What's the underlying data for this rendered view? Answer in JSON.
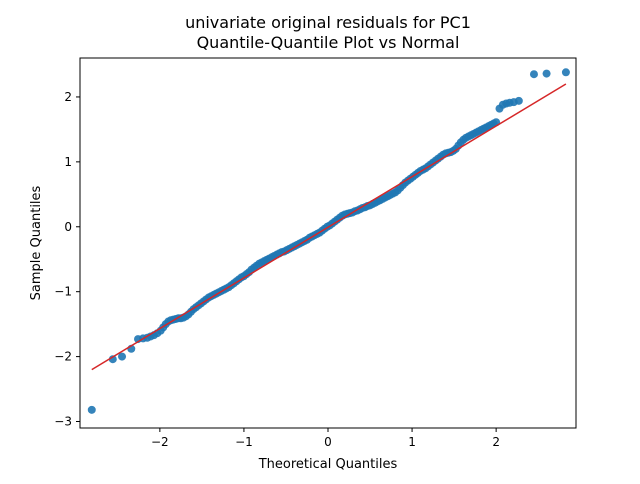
{
  "chart_data": {
    "type": "scatter",
    "title": "univariate original residuals for PC1",
    "subtitle": "Quantile-Quantile Plot vs Normal",
    "xlabel": "Theoretical Quantiles",
    "ylabel": "Sample Quantiles",
    "xlim": [
      -2.95,
      2.95
    ],
    "ylim": [
      -3.1,
      2.6
    ],
    "x_ticks": [
      -2,
      -1,
      0,
      1,
      2
    ],
    "x_tick_labels": [
      "−2",
      "−1",
      "0",
      "1",
      "2"
    ],
    "y_ticks": [
      -3,
      -2,
      -1,
      0,
      1,
      2
    ],
    "y_tick_labels": [
      "−3",
      "−2",
      "−1",
      "0",
      "1",
      "2"
    ],
    "grid": false,
    "series": [
      {
        "kind": "points",
        "color": "#1f77b4",
        "points": [
          [
            -2.81,
            -2.82
          ],
          [
            -2.56,
            -2.04
          ],
          [
            -2.45,
            -2.0
          ],
          [
            -2.34,
            -1.88
          ],
          [
            -2.26,
            -1.73
          ],
          [
            -2.2,
            -1.72
          ],
          [
            -2.15,
            -1.71
          ],
          [
            -2.11,
            -1.69
          ],
          [
            -2.07,
            -1.67
          ],
          [
            -2.03,
            -1.64
          ],
          [
            -1.99,
            -1.6
          ],
          [
            -1.96,
            -1.55
          ],
          [
            -1.93,
            -1.5
          ],
          [
            -1.9,
            -1.46
          ],
          [
            -1.87,
            -1.44
          ],
          [
            -1.84,
            -1.43
          ],
          [
            -1.81,
            -1.42
          ],
          [
            -1.78,
            -1.41
          ],
          [
            -1.75,
            -1.41
          ],
          [
            -1.72,
            -1.4
          ],
          [
            -1.69,
            -1.38
          ],
          [
            -1.66,
            -1.35
          ],
          [
            -1.63,
            -1.31
          ],
          [
            -1.6,
            -1.27
          ],
          [
            -1.57,
            -1.24
          ],
          [
            -1.54,
            -1.21
          ],
          [
            -1.51,
            -1.18
          ],
          [
            -1.48,
            -1.15
          ],
          [
            -1.45,
            -1.12
          ],
          [
            -1.42,
            -1.09
          ],
          [
            -1.39,
            -1.07
          ],
          [
            -1.36,
            -1.05
          ],
          [
            -1.33,
            -1.03
          ],
          [
            -1.3,
            -1.01
          ],
          [
            -1.27,
            -0.99
          ],
          [
            -1.24,
            -0.97
          ],
          [
            -1.21,
            -0.95
          ],
          [
            -1.18,
            -0.93
          ],
          [
            -1.15,
            -0.9
          ],
          [
            -1.12,
            -0.87
          ],
          [
            -1.09,
            -0.84
          ],
          [
            -1.06,
            -0.81
          ],
          [
            -1.03,
            -0.78
          ],
          [
            -1.0,
            -0.76
          ],
          [
            -0.97,
            -0.73
          ],
          [
            -0.94,
            -0.7
          ],
          [
            -0.91,
            -0.66
          ],
          [
            -0.88,
            -0.63
          ],
          [
            -0.85,
            -0.6
          ],
          [
            -0.82,
            -0.57
          ],
          [
            -0.79,
            -0.55
          ],
          [
            -0.76,
            -0.53
          ],
          [
            -0.73,
            -0.51
          ],
          [
            -0.7,
            -0.49
          ],
          [
            -0.67,
            -0.47
          ],
          [
            -0.64,
            -0.45
          ],
          [
            -0.61,
            -0.43
          ],
          [
            -0.58,
            -0.41
          ],
          [
            -0.55,
            -0.39
          ],
          [
            -0.52,
            -0.38
          ],
          [
            -0.49,
            -0.36
          ],
          [
            -0.46,
            -0.34
          ],
          [
            -0.43,
            -0.32
          ],
          [
            -0.4,
            -0.3
          ],
          [
            -0.37,
            -0.28
          ],
          [
            -0.34,
            -0.26
          ],
          [
            -0.31,
            -0.24
          ],
          [
            -0.28,
            -0.22
          ],
          [
            -0.25,
            -0.2
          ],
          [
            -0.22,
            -0.17
          ],
          [
            -0.19,
            -0.15
          ],
          [
            -0.16,
            -0.13
          ],
          [
            -0.13,
            -0.11
          ],
          [
            -0.1,
            -0.09
          ],
          [
            -0.07,
            -0.06
          ],
          [
            -0.04,
            -0.03
          ],
          [
            -0.01,
            0.0
          ],
          [
            0.02,
            0.02
          ],
          [
            0.05,
            0.05
          ],
          [
            0.08,
            0.08
          ],
          [
            0.11,
            0.11
          ],
          [
            0.14,
            0.14
          ],
          [
            0.17,
            0.17
          ],
          [
            0.2,
            0.19
          ],
          [
            0.23,
            0.2
          ],
          [
            0.26,
            0.21
          ],
          [
            0.29,
            0.22
          ],
          [
            0.32,
            0.24
          ],
          [
            0.35,
            0.25
          ],
          [
            0.38,
            0.27
          ],
          [
            0.41,
            0.29
          ],
          [
            0.44,
            0.3
          ],
          [
            0.47,
            0.32
          ],
          [
            0.5,
            0.33
          ],
          [
            0.53,
            0.35
          ],
          [
            0.56,
            0.37
          ],
          [
            0.59,
            0.39
          ],
          [
            0.62,
            0.41
          ],
          [
            0.65,
            0.43
          ],
          [
            0.68,
            0.45
          ],
          [
            0.71,
            0.47
          ],
          [
            0.74,
            0.49
          ],
          [
            0.77,
            0.51
          ],
          [
            0.8,
            0.53
          ],
          [
            0.83,
            0.56
          ],
          [
            0.86,
            0.6
          ],
          [
            0.89,
            0.64
          ],
          [
            0.92,
            0.68
          ],
          [
            0.95,
            0.71
          ],
          [
            0.98,
            0.74
          ],
          [
            1.01,
            0.77
          ],
          [
            1.04,
            0.8
          ],
          [
            1.07,
            0.83
          ],
          [
            1.1,
            0.86
          ],
          [
            1.13,
            0.88
          ],
          [
            1.16,
            0.9
          ],
          [
            1.19,
            0.93
          ],
          [
            1.22,
            0.96
          ],
          [
            1.25,
            0.99
          ],
          [
            1.28,
            1.02
          ],
          [
            1.31,
            1.05
          ],
          [
            1.34,
            1.08
          ],
          [
            1.37,
            1.11
          ],
          [
            1.4,
            1.13
          ],
          [
            1.43,
            1.14
          ],
          [
            1.46,
            1.15
          ],
          [
            1.49,
            1.17
          ],
          [
            1.52,
            1.2
          ],
          [
            1.55,
            1.25
          ],
          [
            1.58,
            1.3
          ],
          [
            1.61,
            1.34
          ],
          [
            1.64,
            1.37
          ],
          [
            1.67,
            1.39
          ],
          [
            1.7,
            1.41
          ],
          [
            1.73,
            1.43
          ],
          [
            1.76,
            1.45
          ],
          [
            1.79,
            1.47
          ],
          [
            1.82,
            1.49
          ],
          [
            1.85,
            1.51
          ],
          [
            1.88,
            1.53
          ],
          [
            1.91,
            1.55
          ],
          [
            1.94,
            1.57
          ],
          [
            1.97,
            1.59
          ],
          [
            2.0,
            1.61
          ],
          [
            2.04,
            1.82
          ],
          [
            2.08,
            1.88
          ],
          [
            2.12,
            1.9
          ],
          [
            2.16,
            1.91
          ],
          [
            2.21,
            1.92
          ],
          [
            2.27,
            1.94
          ],
          [
            2.45,
            2.35
          ],
          [
            2.6,
            2.36
          ],
          [
            2.83,
            2.38
          ]
        ]
      },
      {
        "kind": "line",
        "color": "#d62728",
        "x": [
          -2.81,
          2.83
        ],
        "y": [
          -2.2,
          2.2
        ]
      }
    ]
  }
}
